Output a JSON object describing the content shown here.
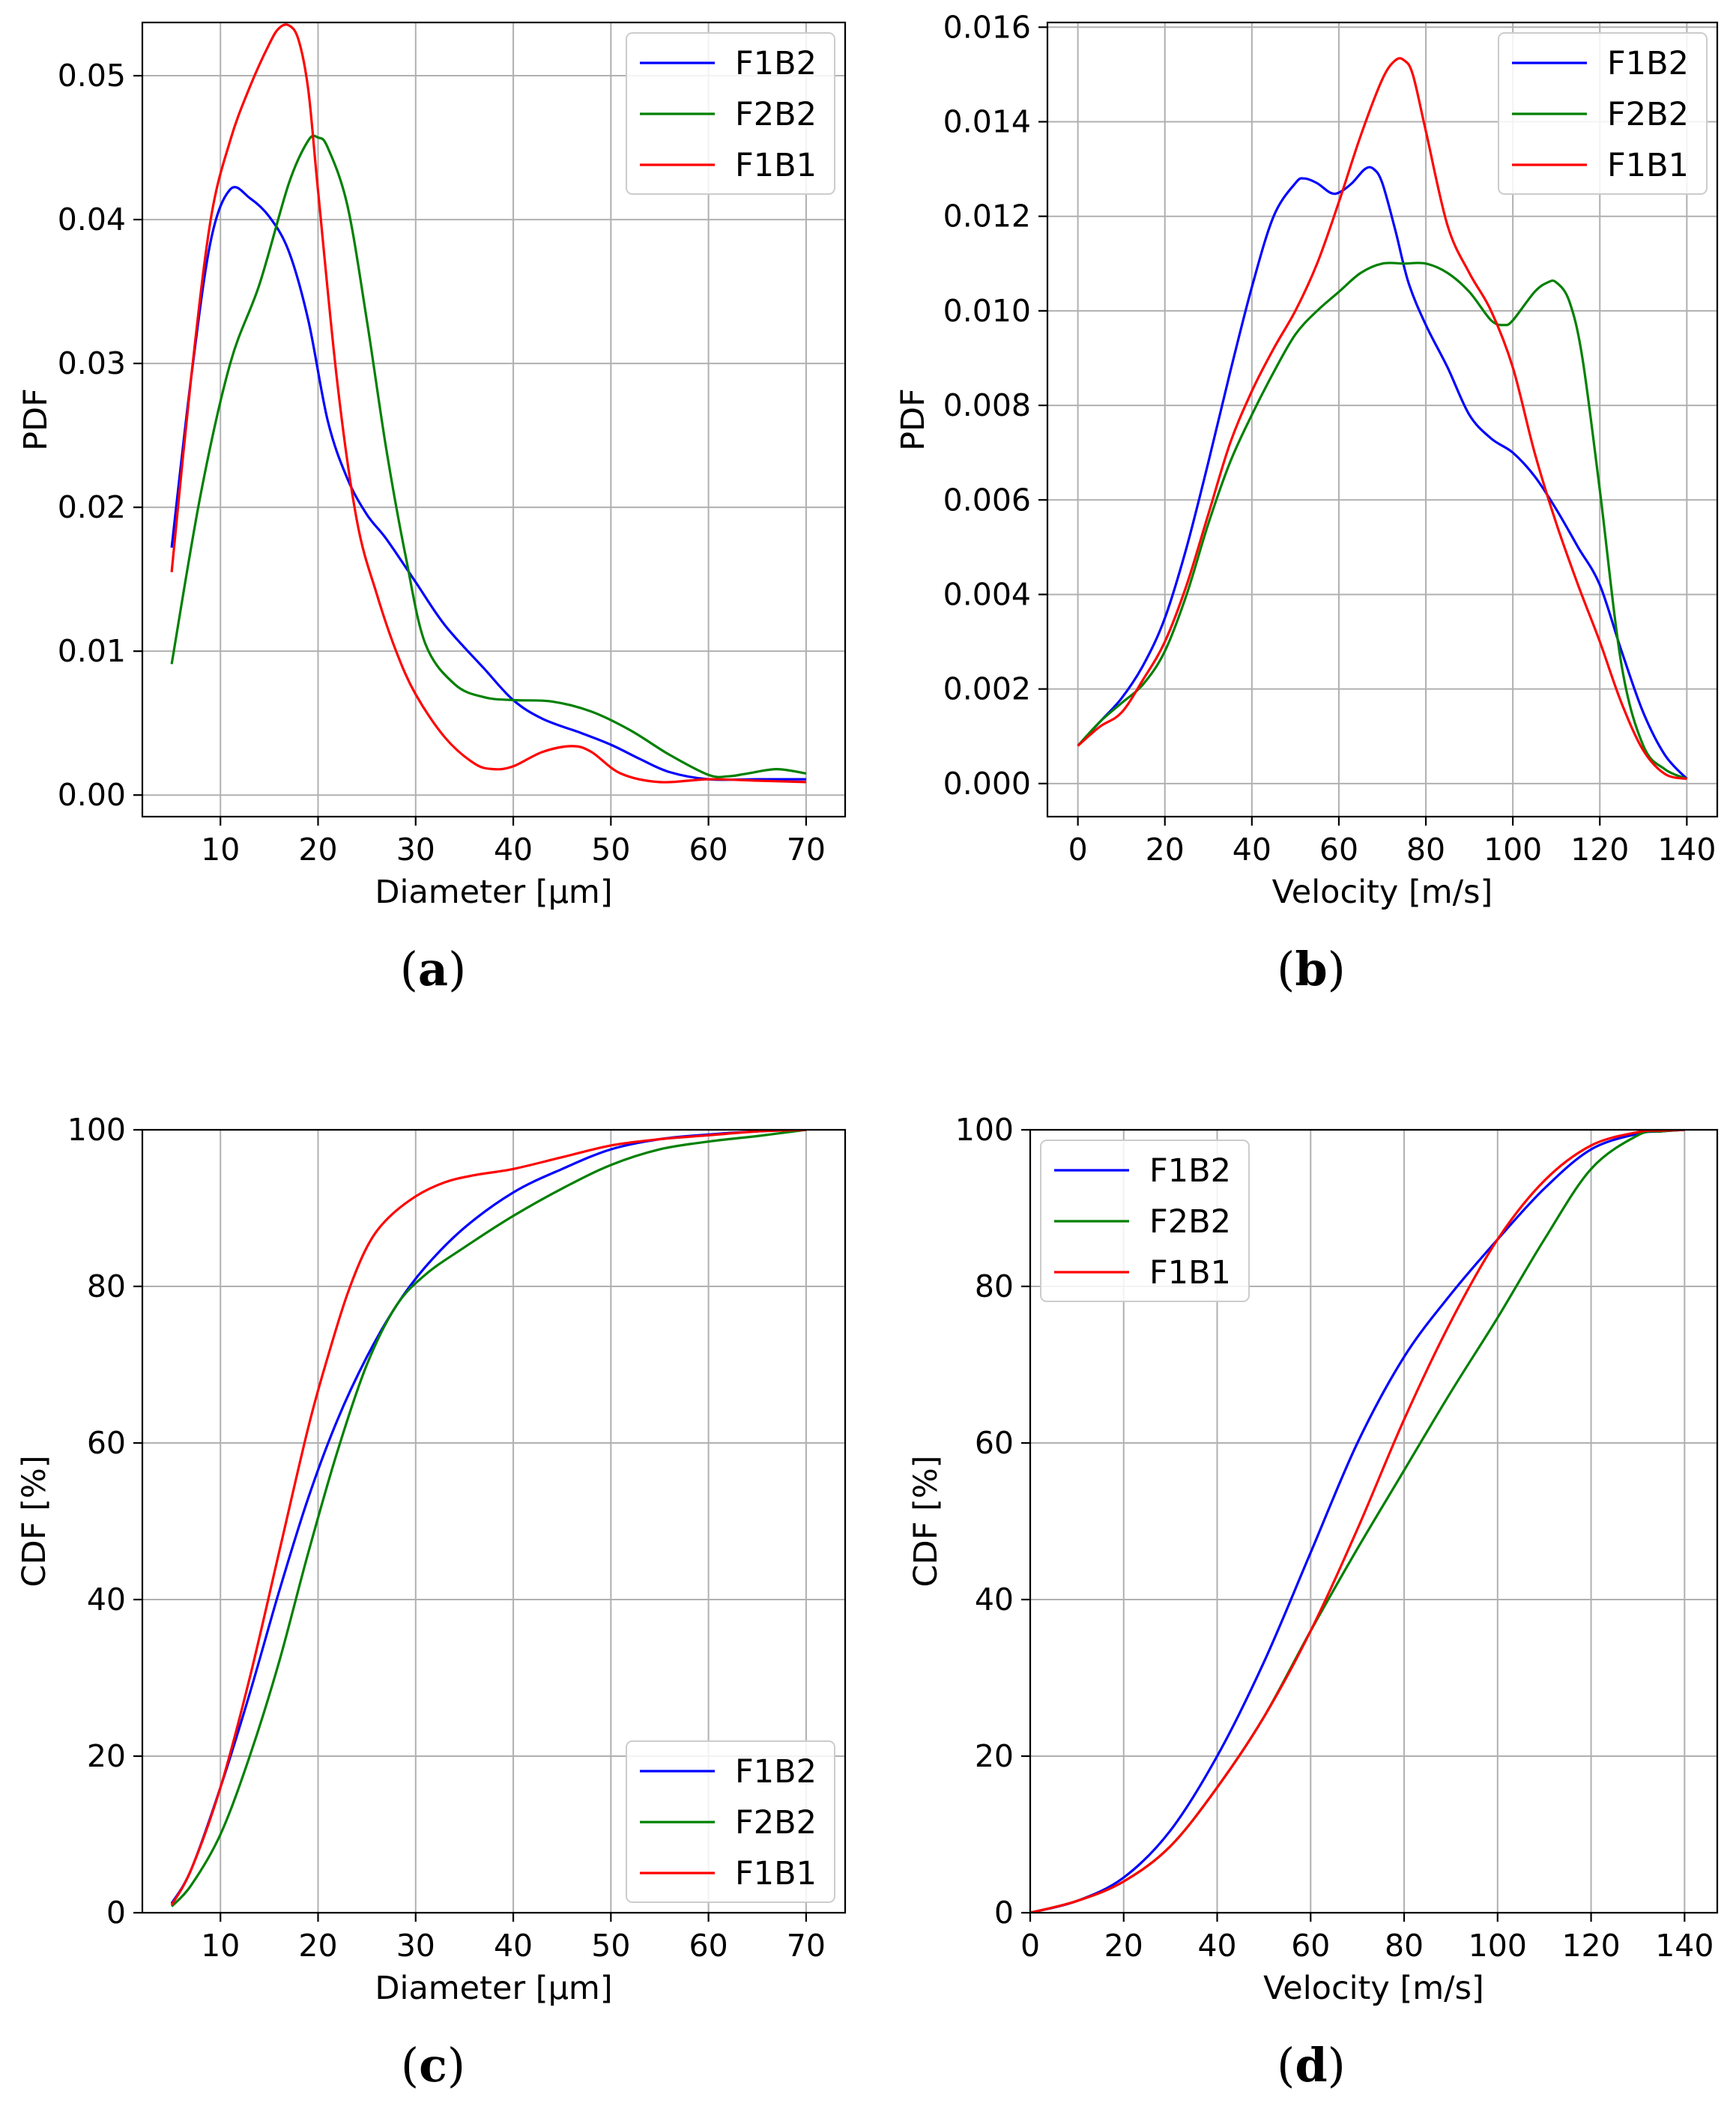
{
  "colors": {
    "F1B2": "#0000ff",
    "F2B2": "#008000",
    "F1B1": "#ff0000",
    "grid": "#b0b0b0"
  },
  "chart_data": [
    {
      "id": "a",
      "type": "line",
      "panel_label": "a",
      "xlabel": "Diameter [µm]",
      "ylabel": "PDF",
      "xlim": [
        2,
        74
      ],
      "ylim": [
        -0.0015,
        0.0537
      ],
      "xticks": [
        10,
        20,
        30,
        40,
        50,
        60,
        70
      ],
      "xtick_labels": [
        "10",
        "20",
        "30",
        "40",
        "50",
        "60",
        "70"
      ],
      "yticks": [
        0,
        0.01,
        0.02,
        0.03,
        0.04,
        0.05
      ],
      "ytick_labels": [
        "0.00",
        "0.01",
        "0.02",
        "0.03",
        "0.04",
        "0.05"
      ],
      "grid": true,
      "legend_position": "top-right",
      "series": [
        {
          "name": "F1B2",
          "color": "#0000ff",
          "x": [
            5,
            7,
            9,
            11,
            13,
            15,
            17,
            19,
            21,
            23,
            25,
            27,
            30,
            33,
            37,
            40,
            43,
            47,
            50,
            53,
            56,
            60,
            65,
            70
          ],
          "y": [
            0.0172,
            0.029,
            0.0385,
            0.0421,
            0.0415,
            0.0402,
            0.0378,
            0.033,
            0.026,
            0.022,
            0.0195,
            0.0178,
            0.0148,
            0.0118,
            0.0088,
            0.0066,
            0.0053,
            0.0043,
            0.0035,
            0.0025,
            0.0016,
            0.0011,
            0.0011,
            0.0011
          ]
        },
        {
          "name": "F2B2",
          "color": "#008000",
          "x": [
            5,
            8,
            11,
            14,
            17,
            19,
            20,
            21,
            23,
            25,
            27,
            29,
            31,
            34,
            37,
            40,
            44,
            48,
            52,
            56,
            60,
            62,
            64,
            67,
            70
          ],
          "y": [
            0.0091,
            0.021,
            0.03,
            0.0355,
            0.0425,
            0.0455,
            0.0457,
            0.045,
            0.041,
            0.033,
            0.024,
            0.0165,
            0.0105,
            0.0077,
            0.0068,
            0.0066,
            0.0065,
            0.0058,
            0.0045,
            0.0028,
            0.0014,
            0.0013,
            0.0015,
            0.0018,
            0.0015
          ]
        },
        {
          "name": "F1B1",
          "color": "#ff0000",
          "x": [
            5,
            7,
            9,
            11,
            13,
            15,
            16,
            17,
            18,
            19,
            20,
            22,
            24,
            26,
            28,
            30,
            33,
            36,
            38,
            40,
            43,
            46,
            48,
            51,
            55,
            60,
            65,
            70
          ],
          "y": [
            0.0155,
            0.029,
            0.04,
            0.0455,
            0.0492,
            0.0522,
            0.0533,
            0.0535,
            0.0525,
            0.049,
            0.042,
            0.0285,
            0.019,
            0.014,
            0.01,
            0.007,
            0.004,
            0.0022,
            0.0018,
            0.002,
            0.003,
            0.0034,
            0.003,
            0.0015,
            0.0009,
            0.0011,
            0.001,
            0.0009
          ]
        }
      ]
    },
    {
      "id": "b",
      "type": "line",
      "panel_label": "b",
      "xlabel": "Velocity [m/s]",
      "ylabel": "PDF",
      "xlim": [
        -7,
        147
      ],
      "ylim": [
        -0.0007,
        0.0161
      ],
      "xticks": [
        0,
        20,
        40,
        60,
        80,
        100,
        120,
        140
      ],
      "xtick_labels": [
        "0",
        "20",
        "40",
        "60",
        "80",
        "100",
        "120",
        "140"
      ],
      "yticks": [
        0,
        0.002,
        0.004,
        0.006,
        0.008,
        0.01,
        0.012,
        0.014,
        0.016
      ],
      "ytick_labels": [
        "0.000",
        "0.002",
        "0.004",
        "0.006",
        "0.008",
        "0.010",
        "0.012",
        "0.014",
        "0.016"
      ],
      "grid": true,
      "legend_position": "top-right",
      "series": [
        {
          "name": "F1B2",
          "color": "#0000ff",
          "x": [
            0,
            5,
            10,
            15,
            20,
            25,
            30,
            35,
            40,
            45,
            50,
            52,
            55,
            58,
            60,
            63,
            66,
            68,
            70,
            73,
            76,
            80,
            85,
            90,
            95,
            100,
            105,
            110,
            115,
            120,
            125,
            130,
            135,
            140
          ],
          "y": [
            0.0008,
            0.0013,
            0.0018,
            0.0025,
            0.0035,
            0.005,
            0.0068,
            0.0087,
            0.0105,
            0.012,
            0.0127,
            0.0128,
            0.0127,
            0.0125,
            0.0125,
            0.0127,
            0.013,
            0.013,
            0.0127,
            0.0117,
            0.0106,
            0.0097,
            0.0088,
            0.0078,
            0.0073,
            0.007,
            0.0065,
            0.0058,
            0.005,
            0.0042,
            0.0028,
            0.0015,
            0.0006,
            0.0001
          ]
        },
        {
          "name": "F2B2",
          "color": "#008000",
          "x": [
            0,
            5,
            10,
            15,
            20,
            25,
            30,
            35,
            40,
            45,
            50,
            55,
            60,
            65,
            70,
            75,
            80,
            85,
            90,
            95,
            98,
            100,
            105,
            108,
            110,
            113,
            116,
            120,
            125,
            130,
            135,
            140
          ],
          "y": [
            0.0008,
            0.0013,
            0.0017,
            0.0021,
            0.0028,
            0.004,
            0.0055,
            0.0068,
            0.0078,
            0.0087,
            0.0095,
            0.01,
            0.0104,
            0.0108,
            0.011,
            0.011,
            0.011,
            0.0108,
            0.0104,
            0.0098,
            0.0097,
            0.0098,
            0.0104,
            0.0106,
            0.0106,
            0.0102,
            0.009,
            0.0062,
            0.0025,
            0.0008,
            0.0003,
            0.0001
          ]
        },
        {
          "name": "F1B1",
          "color": "#ff0000",
          "x": [
            0,
            5,
            10,
            15,
            20,
            25,
            30,
            35,
            40,
            45,
            50,
            55,
            60,
            65,
            70,
            73,
            75,
            77,
            80,
            85,
            90,
            95,
            100,
            105,
            110,
            115,
            120,
            125,
            130,
            135,
            140
          ],
          "y": [
            0.0008,
            0.0012,
            0.0015,
            0.0022,
            0.003,
            0.0042,
            0.0057,
            0.0072,
            0.0083,
            0.0092,
            0.01,
            0.011,
            0.0123,
            0.0137,
            0.0149,
            0.0153,
            0.0153,
            0.015,
            0.0138,
            0.0118,
            0.0108,
            0.01,
            0.0088,
            0.007,
            0.0055,
            0.0042,
            0.003,
            0.0017,
            0.0007,
            0.0002,
            0.0001
          ]
        }
      ]
    },
    {
      "id": "c",
      "type": "line",
      "panel_label": "c",
      "xlabel": "Diameter [µm]",
      "ylabel": "CDF [%]",
      "xlim": [
        2,
        74
      ],
      "ylim": [
        0,
        100
      ],
      "xticks": [
        10,
        20,
        30,
        40,
        50,
        60,
        70
      ],
      "xtick_labels": [
        "10",
        "20",
        "30",
        "40",
        "50",
        "60",
        "70"
      ],
      "yticks": [
        0,
        20,
        40,
        60,
        80,
        100
      ],
      "ytick_labels": [
        "0",
        "20",
        "40",
        "60",
        "80",
        "100"
      ],
      "grid": true,
      "legend_position": "bottom-right",
      "series": [
        {
          "name": "F1B2",
          "color": "#0000ff",
          "x": [
            5,
            7,
            10,
            13,
            16,
            19,
            22,
            25,
            28,
            31,
            35,
            40,
            45,
            50,
            55,
            60,
            65,
            70
          ],
          "y": [
            1.2,
            5.5,
            16,
            28,
            41,
            53,
            63,
            71,
            77.5,
            82.5,
            87.5,
            92,
            95,
            97.5,
            98.8,
            99.4,
            99.8,
            100
          ]
        },
        {
          "name": "F2B2",
          "color": "#008000",
          "x": [
            5,
            7,
            10,
            13,
            16,
            19,
            22,
            25,
            28,
            31,
            35,
            40,
            45,
            50,
            55,
            60,
            65,
            70
          ],
          "y": [
            0.8,
            3.5,
            10,
            20,
            32,
            46,
            59,
            70,
            77.5,
            81.5,
            85,
            89,
            92.5,
            95.5,
            97.5,
            98.5,
            99.2,
            100
          ]
        },
        {
          "name": "F1B1",
          "color": "#ff0000",
          "x": [
            5,
            7,
            10,
            13,
            16,
            19,
            21,
            23,
            25,
            27,
            30,
            33,
            36,
            40,
            45,
            50,
            55,
            60,
            65,
            70
          ],
          "y": [
            1.0,
            5.5,
            16,
            30,
            46,
            62,
            71,
            79,
            85,
            88.5,
            91.5,
            93.3,
            94.2,
            95,
            96.5,
            98,
            98.8,
            99.3,
            99.8,
            100
          ]
        }
      ]
    },
    {
      "id": "d",
      "type": "line",
      "panel_label": "d",
      "xlabel": "Velocity [m/s]",
      "ylabel": "CDF [%]",
      "xlim": [
        0,
        147
      ],
      "ylim": [
        0,
        100
      ],
      "xticks": [
        0,
        20,
        40,
        60,
        80,
        100,
        120,
        140
      ],
      "xtick_labels": [
        "0",
        "20",
        "40",
        "60",
        "80",
        "100",
        "120",
        "140"
      ],
      "yticks": [
        0,
        20,
        40,
        60,
        80,
        100
      ],
      "ytick_labels": [
        "0",
        "20",
        "40",
        "60",
        "80",
        "100"
      ],
      "grid": true,
      "legend_position": "top-left",
      "series": [
        {
          "name": "F1B2",
          "color": "#0000ff",
          "x": [
            0,
            10,
            20,
            30,
            40,
            50,
            60,
            70,
            80,
            90,
            100,
            110,
            120,
            130,
            135,
            140
          ],
          "y": [
            0,
            1.5,
            4.5,
            10.5,
            20,
            32,
            46,
            60,
            71,
            79,
            86,
            92.5,
            97.5,
            99.5,
            99.8,
            100
          ]
        },
        {
          "name": "F2B2",
          "color": "#008000",
          "x": [
            0,
            10,
            20,
            30,
            40,
            50,
            60,
            70,
            80,
            90,
            100,
            110,
            120,
            130,
            135,
            140
          ],
          "y": [
            0,
            1.5,
            4,
            8.5,
            16,
            25,
            36,
            46.5,
            56.5,
            66.5,
            76,
            86,
            95,
            99.3,
            99.8,
            100
          ]
        },
        {
          "name": "F1B1",
          "color": "#ff0000",
          "x": [
            0,
            10,
            20,
            30,
            40,
            50,
            60,
            70,
            80,
            90,
            100,
            110,
            120,
            130,
            135,
            140
          ],
          "y": [
            0,
            1.5,
            4,
            8.5,
            16,
            25,
            36,
            49,
            63,
            75.5,
            86,
            93.5,
            98,
            99.7,
            99.9,
            100
          ]
        }
      ]
    }
  ]
}
